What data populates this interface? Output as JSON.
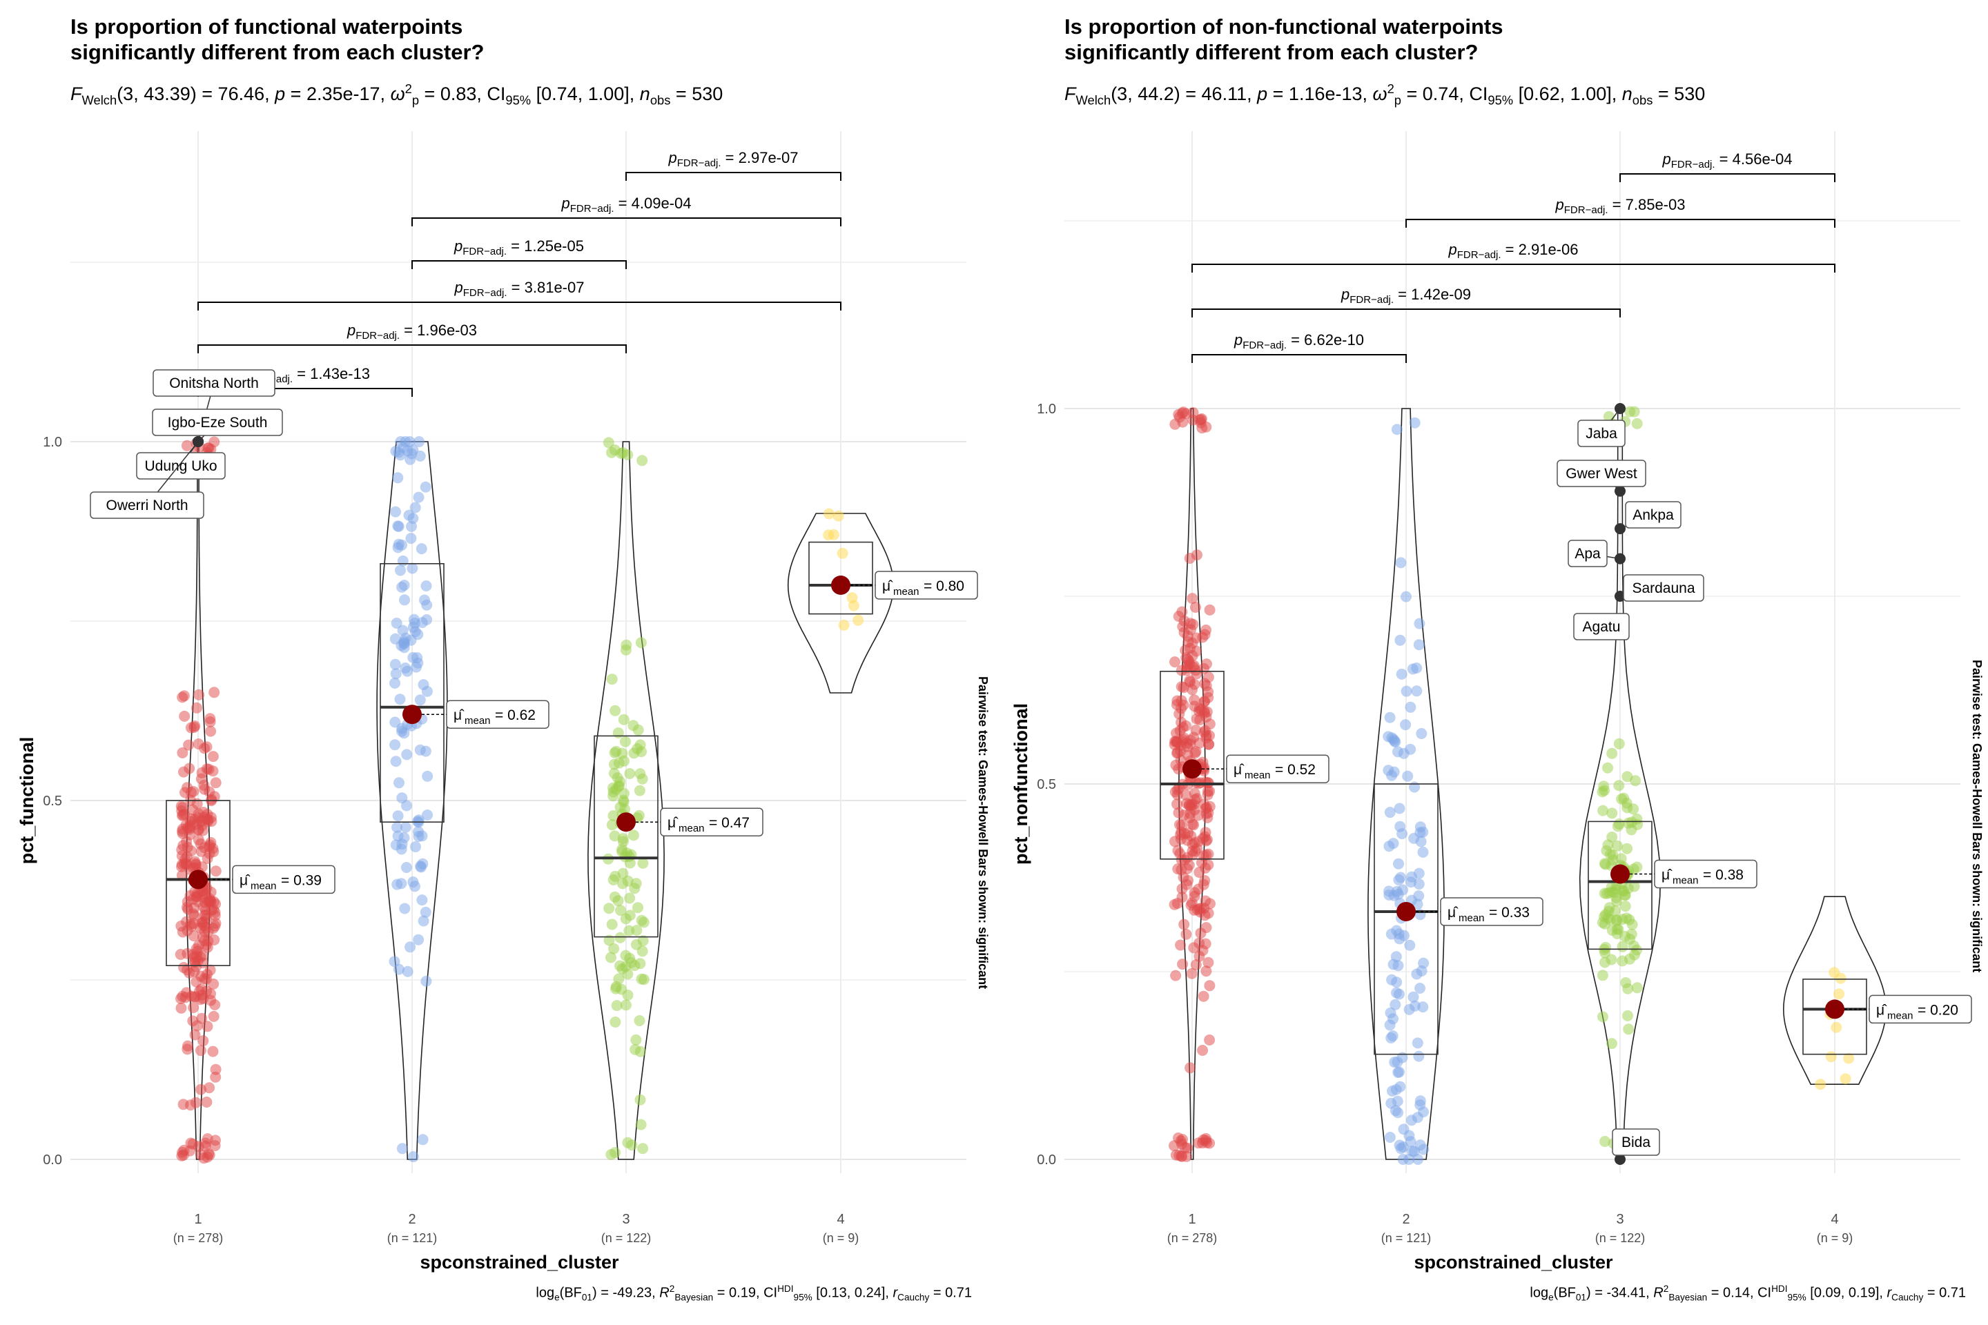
{
  "chart_data": [
    {
      "type": "violin-box-scatter",
      "title": "Is proportion of functional waterpoints\nsignificantly different from each cluster?",
      "subtitle": {
        "stat": "F",
        "stat_sub": "Welch",
        "df": "(3, 43.39)",
        "statistic": "76.46",
        "p": "2.35e-17",
        "effect_label": "ω",
        "effect_sup": "2",
        "effect_sub": "p",
        "effect": "0.83",
        "ci_label": "CI",
        "ci_sub": "95%",
        "ci": "[0.74, 1.00]",
        "n_label": "n",
        "n_sub": "obs",
        "n_obs": "530"
      },
      "xlabel": "spconstrained_cluster",
      "ylabel": "pct_functional",
      "ylim": [
        0,
        1
      ],
      "yticks": [
        "0.0",
        "0.5",
        "1.0"
      ],
      "categories": [
        "1",
        "2",
        "3",
        "4"
      ],
      "n_labels": [
        "(n = 278)",
        "(n = 121)",
        "(n = 122)",
        "(n = 9)"
      ],
      "colors": [
        "#e04848",
        "#7ea6e8",
        "#9bd04a",
        "#ffd84a"
      ],
      "means": [
        0.39,
        0.62,
        0.47,
        0.8
      ],
      "mean_labels": [
        "0.39",
        "0.62",
        "0.47",
        "0.80"
      ],
      "boxes": [
        {
          "q1": 0.27,
          "median": 0.39,
          "q3": 0.5
        },
        {
          "q1": 0.47,
          "median": 0.63,
          "q3": 0.83
        },
        {
          "q1": 0.31,
          "median": 0.42,
          "q3": 0.59
        },
        {
          "q1": 0.76,
          "median": 0.8,
          "q3": 0.86
        }
      ],
      "violin_range": [
        [
          0,
          1
        ],
        [
          0,
          1
        ],
        [
          0,
          1
        ],
        [
          0.65,
          0.9
        ]
      ],
      "pairwise": [
        {
          "from": "1",
          "to": "2",
          "p": "1.43e-13"
        },
        {
          "from": "1",
          "to": "3",
          "p": "1.96e-03"
        },
        {
          "from": "1",
          "to": "4",
          "p": "3.81e-07"
        },
        {
          "from": "2",
          "to": "3",
          "p": "1.25e-05"
        },
        {
          "from": "2",
          "to": "4",
          "p": "4.09e-04"
        },
        {
          "from": "3",
          "to": "4",
          "p": "2.97e-07"
        }
      ],
      "p_label": "p",
      "p_sub": "FDR−adj.",
      "outliers": [
        {
          "label": "Onitsha North",
          "cluster": "1",
          "value": 1.0
        },
        {
          "label": "Igbo-Eze South",
          "cluster": "1",
          "value": 1.0
        },
        {
          "label": "Udung Uko",
          "cluster": "1",
          "value": 1.0
        },
        {
          "label": "Owerri North",
          "cluster": "1",
          "value": 1.0
        }
      ],
      "side_note": "Pairwise test: Games-Howell Bars shown: significant",
      "caption": {
        "bf": "-49.23",
        "r2": "0.19",
        "ci_label": "HDI",
        "ci_sub": "95%",
        "ci": "[0.13, 0.24]",
        "r_cauchy": "0.71"
      }
    },
    {
      "type": "violin-box-scatter",
      "title": "Is proportion of non-functional waterpoints\nsignificantly different from each cluster?",
      "subtitle": {
        "stat": "F",
        "stat_sub": "Welch",
        "df": "(3, 44.2)",
        "statistic": "46.11",
        "p": "1.16e-13",
        "effect_label": "ω",
        "effect_sup": "2",
        "effect_sub": "p",
        "effect": "0.74",
        "ci_label": "CI",
        "ci_sub": "95%",
        "ci": "[0.62, 1.00]",
        "n_label": "n",
        "n_sub": "obs",
        "n_obs": "530"
      },
      "xlabel": "spconstrained_cluster",
      "ylabel": "pct_nonfunctional",
      "ylim": [
        0,
        1
      ],
      "yticks": [
        "0.0",
        "0.5",
        "1.0"
      ],
      "categories": [
        "1",
        "2",
        "3",
        "4"
      ],
      "n_labels": [
        "(n = 278)",
        "(n = 121)",
        "(n = 122)",
        "(n = 9)"
      ],
      "colors": [
        "#e04848",
        "#7ea6e8",
        "#9bd04a",
        "#ffd84a"
      ],
      "means": [
        0.52,
        0.33,
        0.38,
        0.2
      ],
      "mean_labels": [
        "0.52",
        "0.33",
        "0.38",
        "0.20"
      ],
      "boxes": [
        {
          "q1": 0.4,
          "median": 0.5,
          "q3": 0.65
        },
        {
          "q1": 0.14,
          "median": 0.33,
          "q3": 0.5
        },
        {
          "q1": 0.28,
          "median": 0.37,
          "q3": 0.45
        },
        {
          "q1": 0.14,
          "median": 0.2,
          "q3": 0.24
        }
      ],
      "violin_range": [
        [
          0,
          1
        ],
        [
          0,
          1
        ],
        [
          0,
          1
        ],
        [
          0.1,
          0.35
        ]
      ],
      "pairwise": [
        {
          "from": "1",
          "to": "2",
          "p": "6.62e-10"
        },
        {
          "from": "1",
          "to": "3",
          "p": "1.42e-09"
        },
        {
          "from": "1",
          "to": "4",
          "p": "2.91e-06"
        },
        {
          "from": "2",
          "to": "4",
          "p": "7.85e-03"
        },
        {
          "from": "3",
          "to": "4",
          "p": "4.56e-04"
        }
      ],
      "p_label": "p",
      "p_sub": "FDR−adj.",
      "outliers": [
        {
          "label": "Jaba",
          "cluster": "3",
          "value": 1.0
        },
        {
          "label": "Gwer West",
          "cluster": "3",
          "value": 0.89
        },
        {
          "label": "Ankpa",
          "cluster": "3",
          "value": 0.84
        },
        {
          "label": "Apa",
          "cluster": "3",
          "value": 0.8
        },
        {
          "label": "Sardauna",
          "cluster": "3",
          "value": 0.75
        },
        {
          "label": "Agatu",
          "cluster": "3",
          "value": 0.7
        },
        {
          "label": "Bida",
          "cluster": "3",
          "value": 0.0
        }
      ],
      "side_note": "Pairwise test: Games-Howell Bars shown: significant",
      "caption": {
        "bf": "-34.41",
        "r2": "0.14",
        "ci_label": "HDI",
        "ci_sub": "95%",
        "ci": "[0.09, 0.19]",
        "r_cauchy": "0.71"
      }
    }
  ]
}
